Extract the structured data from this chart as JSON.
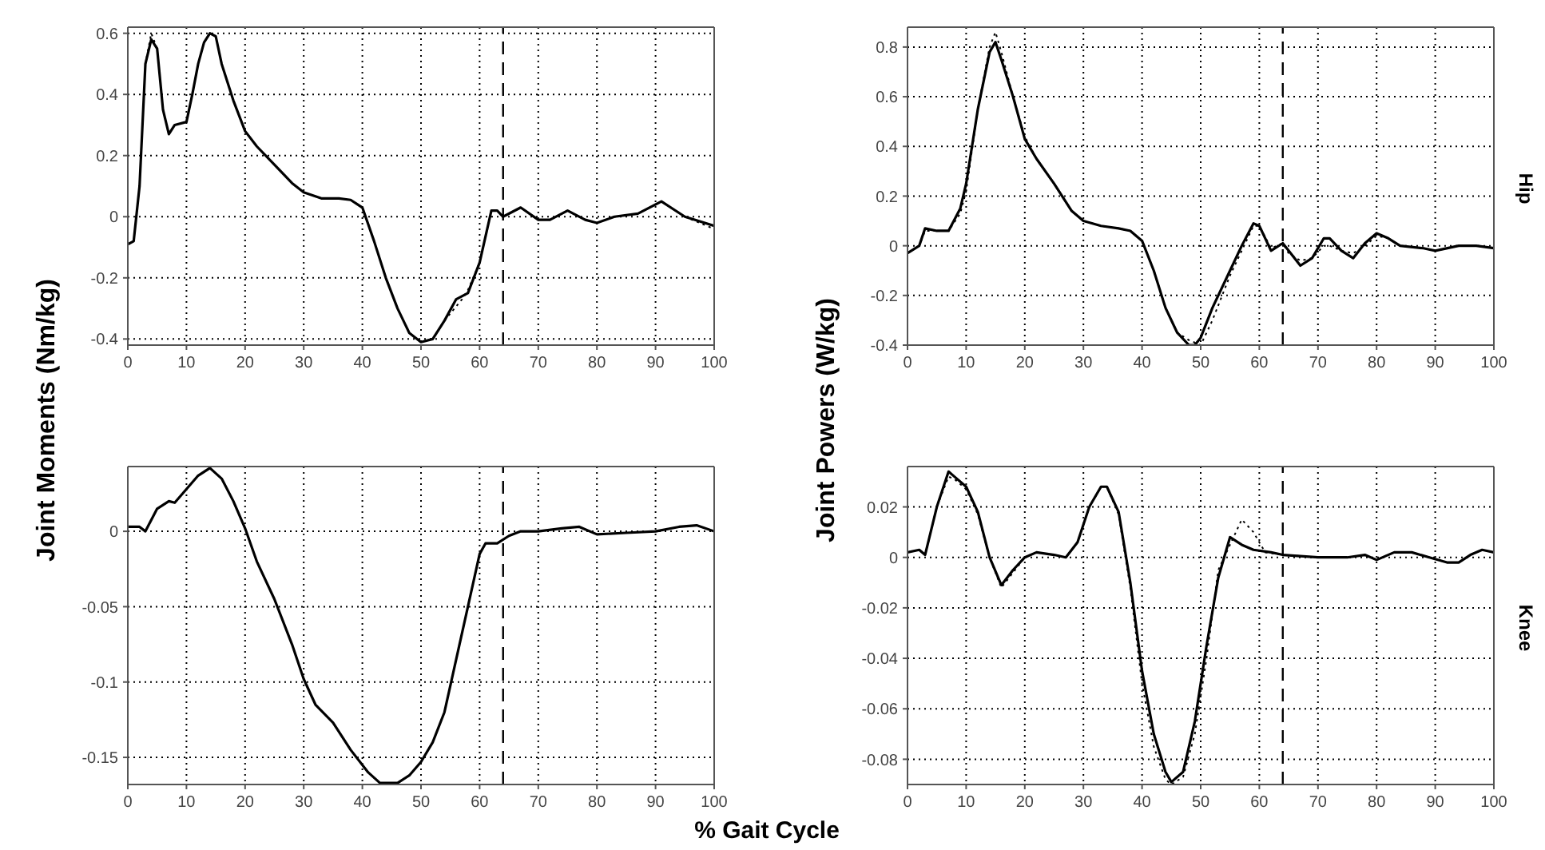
{
  "chart_data": [
    {
      "type": "line",
      "ylabel": "Joint Moments (Nm/kg)",
      "xlim": [
        0,
        100
      ],
      "xticks": [
        0,
        10,
        20,
        30,
        40,
        50,
        60,
        70,
        80,
        90,
        100
      ],
      "ylim": [
        -0.42,
        0.62
      ],
      "yticks": [
        -0.4,
        -0.2,
        0,
        0.2,
        0.4,
        0.6
      ],
      "grid": true,
      "ref_lines": [
        {
          "axis": "x",
          "value": 64,
          "line_style": "dashed",
          "color": "#000000"
        }
      ],
      "series": [
        {
          "color": "#000000",
          "line_style": "solid",
          "x": [
            0,
            1,
            2,
            3,
            4,
            5,
            6,
            7,
            8,
            10,
            11,
            12,
            13,
            14,
            15,
            16,
            18,
            20,
            22,
            25,
            28,
            30,
            33,
            36,
            38,
            40,
            42,
            44,
            46,
            48,
            50,
            52,
            54,
            56,
            58,
            60,
            62,
            63,
            64,
            67,
            70,
            72,
            75,
            78,
            80,
            83,
            87,
            91,
            95,
            100
          ],
          "values": [
            -0.09,
            -0.08,
            0.1,
            0.5,
            0.58,
            0.55,
            0.35,
            0.27,
            0.3,
            0.31,
            0.4,
            0.5,
            0.57,
            0.6,
            0.59,
            0.5,
            0.38,
            0.28,
            0.23,
            0.17,
            0.11,
            0.08,
            0.06,
            0.06,
            0.055,
            0.03,
            -0.08,
            -0.2,
            -0.3,
            -0.38,
            -0.41,
            -0.4,
            -0.34,
            -0.27,
            -0.25,
            -0.15,
            0.02,
            0.02,
            0,
            0.03,
            -0.01,
            -0.01,
            0.02,
            -0.01,
            -0.02,
            0,
            0.01,
            0.05,
            0,
            -0.03
          ]
        },
        {
          "color": "#000000",
          "line_style": "dotted",
          "x": [
            3,
            4,
            5,
            10,
            54,
            57,
            58,
            60,
            70,
            95,
            100
          ],
          "values": [
            0.5,
            0.6,
            0.55,
            null,
            -0.34,
            -0.27,
            -0.24,
            -0.15,
            null,
            0,
            -0.04
          ]
        }
      ]
    },
    {
      "type": "line",
      "ylabel": "Joint Powers (W/kg)",
      "annotations": [
        "Hip"
      ],
      "xlim": [
        0,
        100
      ],
      "xticks": [
        0,
        10,
        20,
        30,
        40,
        50,
        60,
        70,
        80,
        90,
        100
      ],
      "ylim": [
        -0.4,
        0.88
      ],
      "yticks": [
        -0.4,
        -0.2,
        0,
        0.2,
        0.4,
        0.6,
        0.8
      ],
      "grid": true,
      "ref_lines": [
        {
          "axis": "x",
          "value": 64,
          "line_style": "dashed",
          "color": "#000000"
        }
      ],
      "series": [
        {
          "color": "#000000",
          "line_style": "solid",
          "x": [
            0,
            2,
            3,
            5,
            7,
            9,
            10,
            12,
            14,
            15,
            16,
            18,
            20,
            22,
            25,
            28,
            30,
            33,
            36,
            38,
            40,
            42,
            44,
            46,
            48,
            49,
            50,
            52,
            55,
            57,
            59,
            60,
            62,
            64,
            65,
            67,
            69,
            71,
            72,
            74,
            76,
            78,
            80,
            82,
            84,
            88,
            90,
            94,
            97,
            100
          ],
          "values": [
            -0.03,
            0,
            0.07,
            0.06,
            0.06,
            0.15,
            0.25,
            0.55,
            0.78,
            0.82,
            0.75,
            0.6,
            0.43,
            0.35,
            0.25,
            0.14,
            0.1,
            0.08,
            0.07,
            0.06,
            0.02,
            -0.1,
            -0.25,
            -0.35,
            -0.4,
            -0.4,
            -0.37,
            -0.25,
            -0.1,
            0,
            0.09,
            0.08,
            -0.02,
            0.01,
            -0.02,
            -0.08,
            -0.05,
            0.03,
            0.03,
            -0.02,
            -0.05,
            0.01,
            0.05,
            0.03,
            0,
            -0.01,
            -0.02,
            0,
            0,
            -0.01
          ]
        },
        {
          "color": "#000000",
          "line_style": "dotted",
          "x": [
            0,
            2,
            3,
            5,
            7,
            9,
            10,
            12,
            14,
            15,
            16,
            18,
            20,
            22,
            25,
            28,
            30,
            33,
            36,
            38,
            40,
            42,
            44,
            46,
            48,
            50,
            52,
            55,
            57,
            59,
            60,
            62,
            64,
            65,
            67,
            69,
            71,
            72,
            74,
            76,
            78,
            80,
            82,
            84,
            88,
            90,
            94,
            97,
            100
          ],
          "values": [
            -0.03,
            0,
            0.06,
            0.06,
            0.06,
            0.13,
            0.22,
            0.55,
            0.8,
            0.86,
            0.78,
            0.6,
            0.44,
            0.35,
            0.25,
            0.14,
            0.1,
            0.08,
            0.07,
            0.06,
            0.02,
            -0.1,
            -0.25,
            -0.35,
            -0.38,
            -0.4,
            -0.3,
            -0.12,
            -0.02,
            0.08,
            0.08,
            -0.01,
            0.01,
            -0.03,
            -0.06,
            -0.05,
            0,
            0,
            -0.02,
            -0.03,
            0,
            0.04,
            0.03,
            0,
            -0.01,
            -0.02,
            0,
            0,
            -0.01
          ]
        }
      ]
    },
    {
      "type": "line",
      "xlabel": "% Gait Cycle",
      "xlim": [
        0,
        100
      ],
      "xticks": [
        0,
        10,
        20,
        30,
        40,
        50,
        60,
        70,
        80,
        90,
        100
      ],
      "ylim": [
        -0.168,
        0.043
      ],
      "yticks": [
        -0.15,
        -0.1,
        -0.05,
        0
      ],
      "grid": true,
      "ref_lines": [
        {
          "axis": "x",
          "value": 64,
          "line_style": "dashed",
          "color": "#000000"
        }
      ],
      "series": [
        {
          "color": "#000000",
          "line_style": "solid",
          "x": [
            0,
            2,
            3,
            5,
            7,
            8,
            10,
            12,
            14,
            16,
            18,
            20,
            22,
            25,
            28,
            30,
            32,
            35,
            38,
            41,
            43,
            46,
            48,
            50,
            52,
            54,
            56,
            58,
            60,
            61,
            63,
            65,
            67,
            70,
            74,
            77,
            80,
            85,
            90,
            94,
            97,
            100
          ],
          "values": [
            0.003,
            0.003,
            0,
            0.015,
            0.02,
            0.019,
            0.028,
            0.037,
            0.042,
            0.035,
            0.02,
            0.002,
            -0.02,
            -0.045,
            -0.075,
            -0.098,
            -0.115,
            -0.127,
            -0.145,
            -0.16,
            -0.167,
            -0.167,
            -0.162,
            -0.153,
            -0.14,
            -0.12,
            -0.085,
            -0.05,
            -0.015,
            -0.008,
            -0.008,
            -0.003,
            0,
            0,
            0.002,
            0.003,
            -0.002,
            -0.001,
            0,
            0.003,
            0.004,
            0
          ]
        }
      ]
    },
    {
      "type": "line",
      "annotations": [
        "Knee"
      ],
      "xlim": [
        0,
        100
      ],
      "xticks": [
        0,
        10,
        20,
        30,
        40,
        50,
        60,
        70,
        80,
        90,
        100
      ],
      "ylim": [
        -0.09,
        0.036
      ],
      "yticks": [
        -0.08,
        -0.06,
        -0.04,
        -0.02,
        0,
        0.02
      ],
      "grid": true,
      "ref_lines": [
        {
          "axis": "x",
          "value": 64,
          "line_style": "dashed",
          "color": "#000000"
        }
      ],
      "series": [
        {
          "color": "#000000",
          "line_style": "solid",
          "x": [
            0,
            2,
            3,
            5,
            7,
            8,
            10,
            12,
            14,
            16,
            18,
            20,
            22,
            25,
            27,
            29,
            31,
            33,
            34,
            36,
            38,
            40,
            42,
            44,
            45,
            47,
            49,
            51,
            53,
            55,
            57,
            59,
            62,
            64,
            70,
            75,
            78,
            80,
            83,
            86,
            89,
            92,
            94,
            96,
            98,
            100
          ],
          "values": [
            0.002,
            0.003,
            0.001,
            0.02,
            0.034,
            0.032,
            0.028,
            0.018,
            0,
            -0.011,
            -0.005,
            0,
            0.002,
            0.001,
            0,
            0.006,
            0.02,
            0.028,
            0.028,
            0.018,
            -0.01,
            -0.045,
            -0.07,
            -0.085,
            -0.089,
            -0.085,
            -0.065,
            -0.035,
            -0.008,
            0.008,
            0.005,
            0.003,
            0.002,
            0.001,
            0,
            0,
            0.001,
            -0.001,
            0.002,
            0.002,
            0,
            -0.002,
            -0.002,
            0.001,
            0.003,
            0.002
          ]
        },
        {
          "color": "#000000",
          "line_style": "dotted",
          "x": [
            0,
            2,
            3,
            5,
            7,
            8,
            10,
            12,
            14,
            16,
            18,
            20,
            22,
            25,
            27,
            29,
            31,
            33,
            34,
            36,
            38,
            40,
            42,
            44,
            45,
            47,
            49,
            51,
            53,
            55,
            57,
            59,
            61,
            64,
            70,
            75,
            78,
            80,
            83,
            86,
            89,
            92,
            94,
            96,
            98,
            100
          ],
          "values": [
            0.002,
            0.003,
            0.001,
            0.02,
            0.032,
            0.031,
            0.027,
            0.017,
            0,
            -0.012,
            -0.006,
            0,
            0.002,
            0.001,
            0,
            0.006,
            0.02,
            0.028,
            0.028,
            0.017,
            -0.012,
            -0.05,
            -0.075,
            -0.088,
            -0.09,
            -0.087,
            -0.07,
            -0.04,
            -0.005,
            0.005,
            0.015,
            0.01,
            0.002,
            0.001,
            0,
            0,
            0.001,
            -0.001,
            0.002,
            0.002,
            0,
            -0.002,
            -0.002,
            0.001,
            0.003,
            0.002
          ]
        }
      ]
    }
  ]
}
